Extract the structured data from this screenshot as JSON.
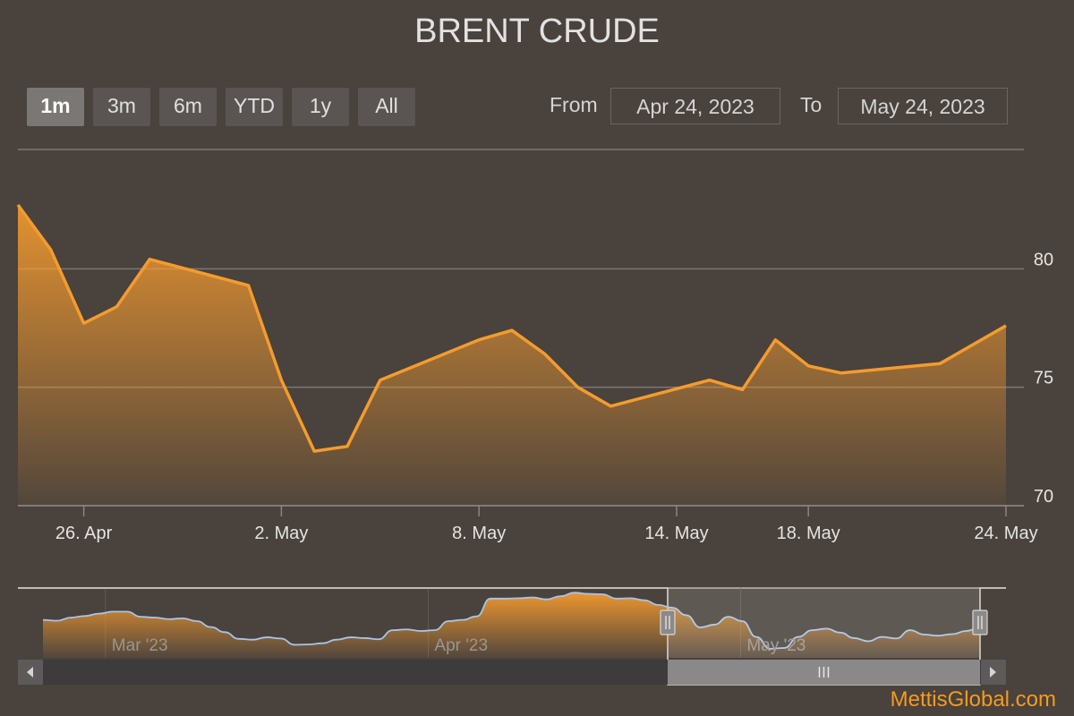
{
  "title": "BRENT CRUDE",
  "range_buttons": [
    {
      "label": "1m",
      "active": true
    },
    {
      "label": "3m",
      "active": false
    },
    {
      "label": "6m",
      "active": false
    },
    {
      "label": "YTD",
      "active": false
    },
    {
      "label": "1y",
      "active": false
    },
    {
      "label": "All",
      "active": false
    }
  ],
  "date_range": {
    "from_label": "From",
    "from_value": "Apr 24, 2023",
    "to_label": "To",
    "to_value": "May 24, 2023"
  },
  "colors": {
    "line": "#f59b2e",
    "navigator_line": "#a9c4e8",
    "grid": "#7c7775"
  },
  "chart_data": {
    "type": "area",
    "title": "BRENT CRUDE",
    "xlabel": "",
    "ylabel": "",
    "x": [
      "2023-04-24",
      "2023-04-25",
      "2023-04-26",
      "2023-04-27",
      "2023-04-28",
      "2023-05-01",
      "2023-05-02",
      "2023-05-03",
      "2023-05-04",
      "2023-05-05",
      "2023-05-08",
      "2023-05-09",
      "2023-05-10",
      "2023-05-11",
      "2023-05-12",
      "2023-05-15",
      "2023-05-16",
      "2023-05-17",
      "2023-05-18",
      "2023-05-19",
      "2023-05-22",
      "2023-05-23",
      "2023-05-24"
    ],
    "series": [
      {
        "values": [
          82.7,
          80.8,
          77.7,
          78.4,
          80.4,
          79.3,
          75.3,
          72.3,
          72.5,
          75.3,
          77.0,
          77.4,
          76.4,
          75.0,
          74.2,
          75.3,
          74.9,
          77.0,
          75.9,
          75.6,
          76.0,
          76.8,
          77.6
        ]
      }
    ],
    "ylim": [
      70,
      85
    ],
    "yticks": [
      70,
      75,
      80
    ],
    "xtick_labels": [
      "26. Apr",
      "2. May",
      "8. May",
      "14. May",
      "18. May",
      "24. May"
    ],
    "xtick_dates": [
      "2023-04-26",
      "2023-05-02",
      "2023-05-08",
      "2023-05-14",
      "2023-05-18",
      "2023-05-24"
    ],
    "grid": true,
    "legend": "none"
  },
  "navigator": {
    "labels": [
      "Mar '23",
      "Apr '23",
      "May '23"
    ],
    "label_dates": [
      "2023-03-01",
      "2023-04-01",
      "2023-05-01"
    ],
    "x_range": [
      "2023-02-23",
      "2023-05-24"
    ],
    "values": [
      79.6,
      79.4,
      80.2,
      80.6,
      81.2,
      81.7,
      81.7,
      80.4,
      80.2,
      79.8,
      80.0,
      79.3,
      77.8,
      76.5,
      74.8,
      74.6,
      75.2,
      74.9,
      73.3,
      73.4,
      73.7,
      74.6,
      75.2,
      75.0,
      74.7,
      77.0,
      77.2,
      76.8,
      77.0,
      79.3,
      79.6,
      80.5,
      85.0,
      85.0,
      85.1,
      85.3,
      84.8,
      85.6,
      86.5,
      86.2,
      86.1,
      85.0,
      85.1,
      84.6,
      83.4,
      82.7,
      80.8,
      77.7,
      78.4,
      80.4,
      79.3,
      75.3,
      72.3,
      72.5,
      75.3,
      77.0,
      77.4,
      76.4,
      75.0,
      74.2,
      75.3,
      74.9,
      77.0,
      75.9,
      75.6,
      76.0,
      76.8,
      77.6
    ],
    "selected": [
      "2023-04-24",
      "2023-05-24"
    ]
  },
  "credit": "MettisGlobal.com"
}
